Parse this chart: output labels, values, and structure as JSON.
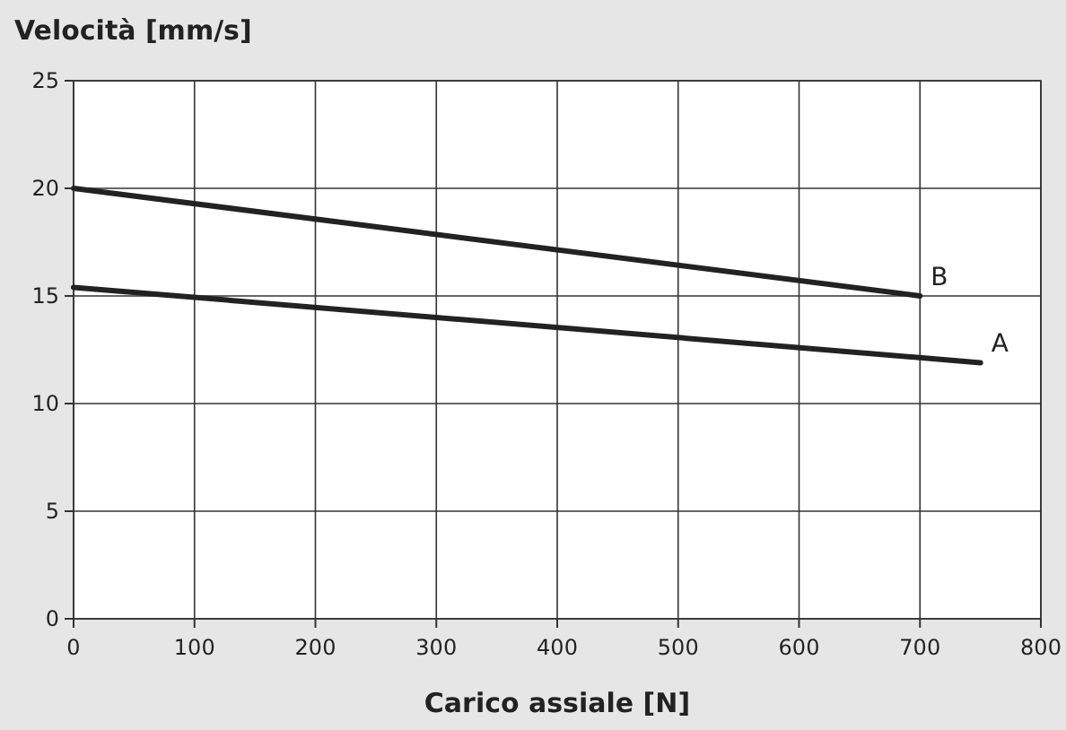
{
  "chart_data": {
    "type": "line",
    "xlabel": "Carico assiale [N]",
    "ylabel": "Velocità [mm/s]",
    "xlim": [
      0,
      800
    ],
    "xticks": [
      0,
      100,
      200,
      300,
      400,
      500,
      600,
      700,
      800
    ],
    "ylim": [
      0,
      25
    ],
    "yticks": [
      0,
      5,
      10,
      15,
      20,
      25
    ],
    "grid": true,
    "marker": "none",
    "line_style": "solid",
    "series": [
      {
        "name": "B",
        "color": "#222222",
        "x": [
          0,
          700
        ],
        "values": [
          20,
          15
        ]
      },
      {
        "name": "A",
        "color": "#222222",
        "x": [
          0,
          750
        ],
        "values": [
          15.4,
          11.9
        ]
      }
    ]
  }
}
